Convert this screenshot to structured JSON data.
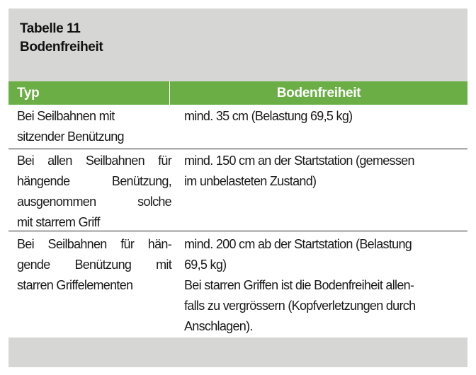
{
  "title": {
    "line1": "Tabelle 11",
    "line2": "Bodenfreiheit"
  },
  "header": {
    "col1": "Typ",
    "col2": "Bodenfreiheit"
  },
  "colors": {
    "header_green": "#6aae45",
    "panel_gray": "#d6d6d5"
  },
  "rows": [
    {
      "typ": [
        {
          "t": "Bei Seilbahnen mit",
          "j": false
        },
        {
          "t": "sitzender Benützung",
          "j": false
        }
      ],
      "boden": [
        "mind. 35 cm (Belastung 69,5 kg)"
      ]
    },
    {
      "typ": [
        {
          "t": "Bei allen Seilbahnen für",
          "j": true
        },
        {
          "t": "hängende Benützung,",
          "j": true
        },
        {
          "t": "ausgenommen solche",
          "j": true
        },
        {
          "t": "mit starrem Griff",
          "j": false
        }
      ],
      "boden": [
        "mind. 150 cm an der Startstation (gemessen",
        "im unbelasteten Zustand)"
      ]
    },
    {
      "typ": [
        {
          "t": "Bei Seilbahnen für hän-",
          "j": true
        },
        {
          "t": "gende Benützung mit",
          "j": true
        },
        {
          "t": "starren Griffelementen",
          "j": false
        }
      ],
      "boden": [
        "mind. 200 cm ab der Startstation (Belastung",
        "69,5 kg)",
        "Bei starren Griffen ist die Bodenfreiheit allen-",
        "falls zu vergrössern (Kopfverletzungen durch",
        "Anschlagen)."
      ]
    }
  ]
}
